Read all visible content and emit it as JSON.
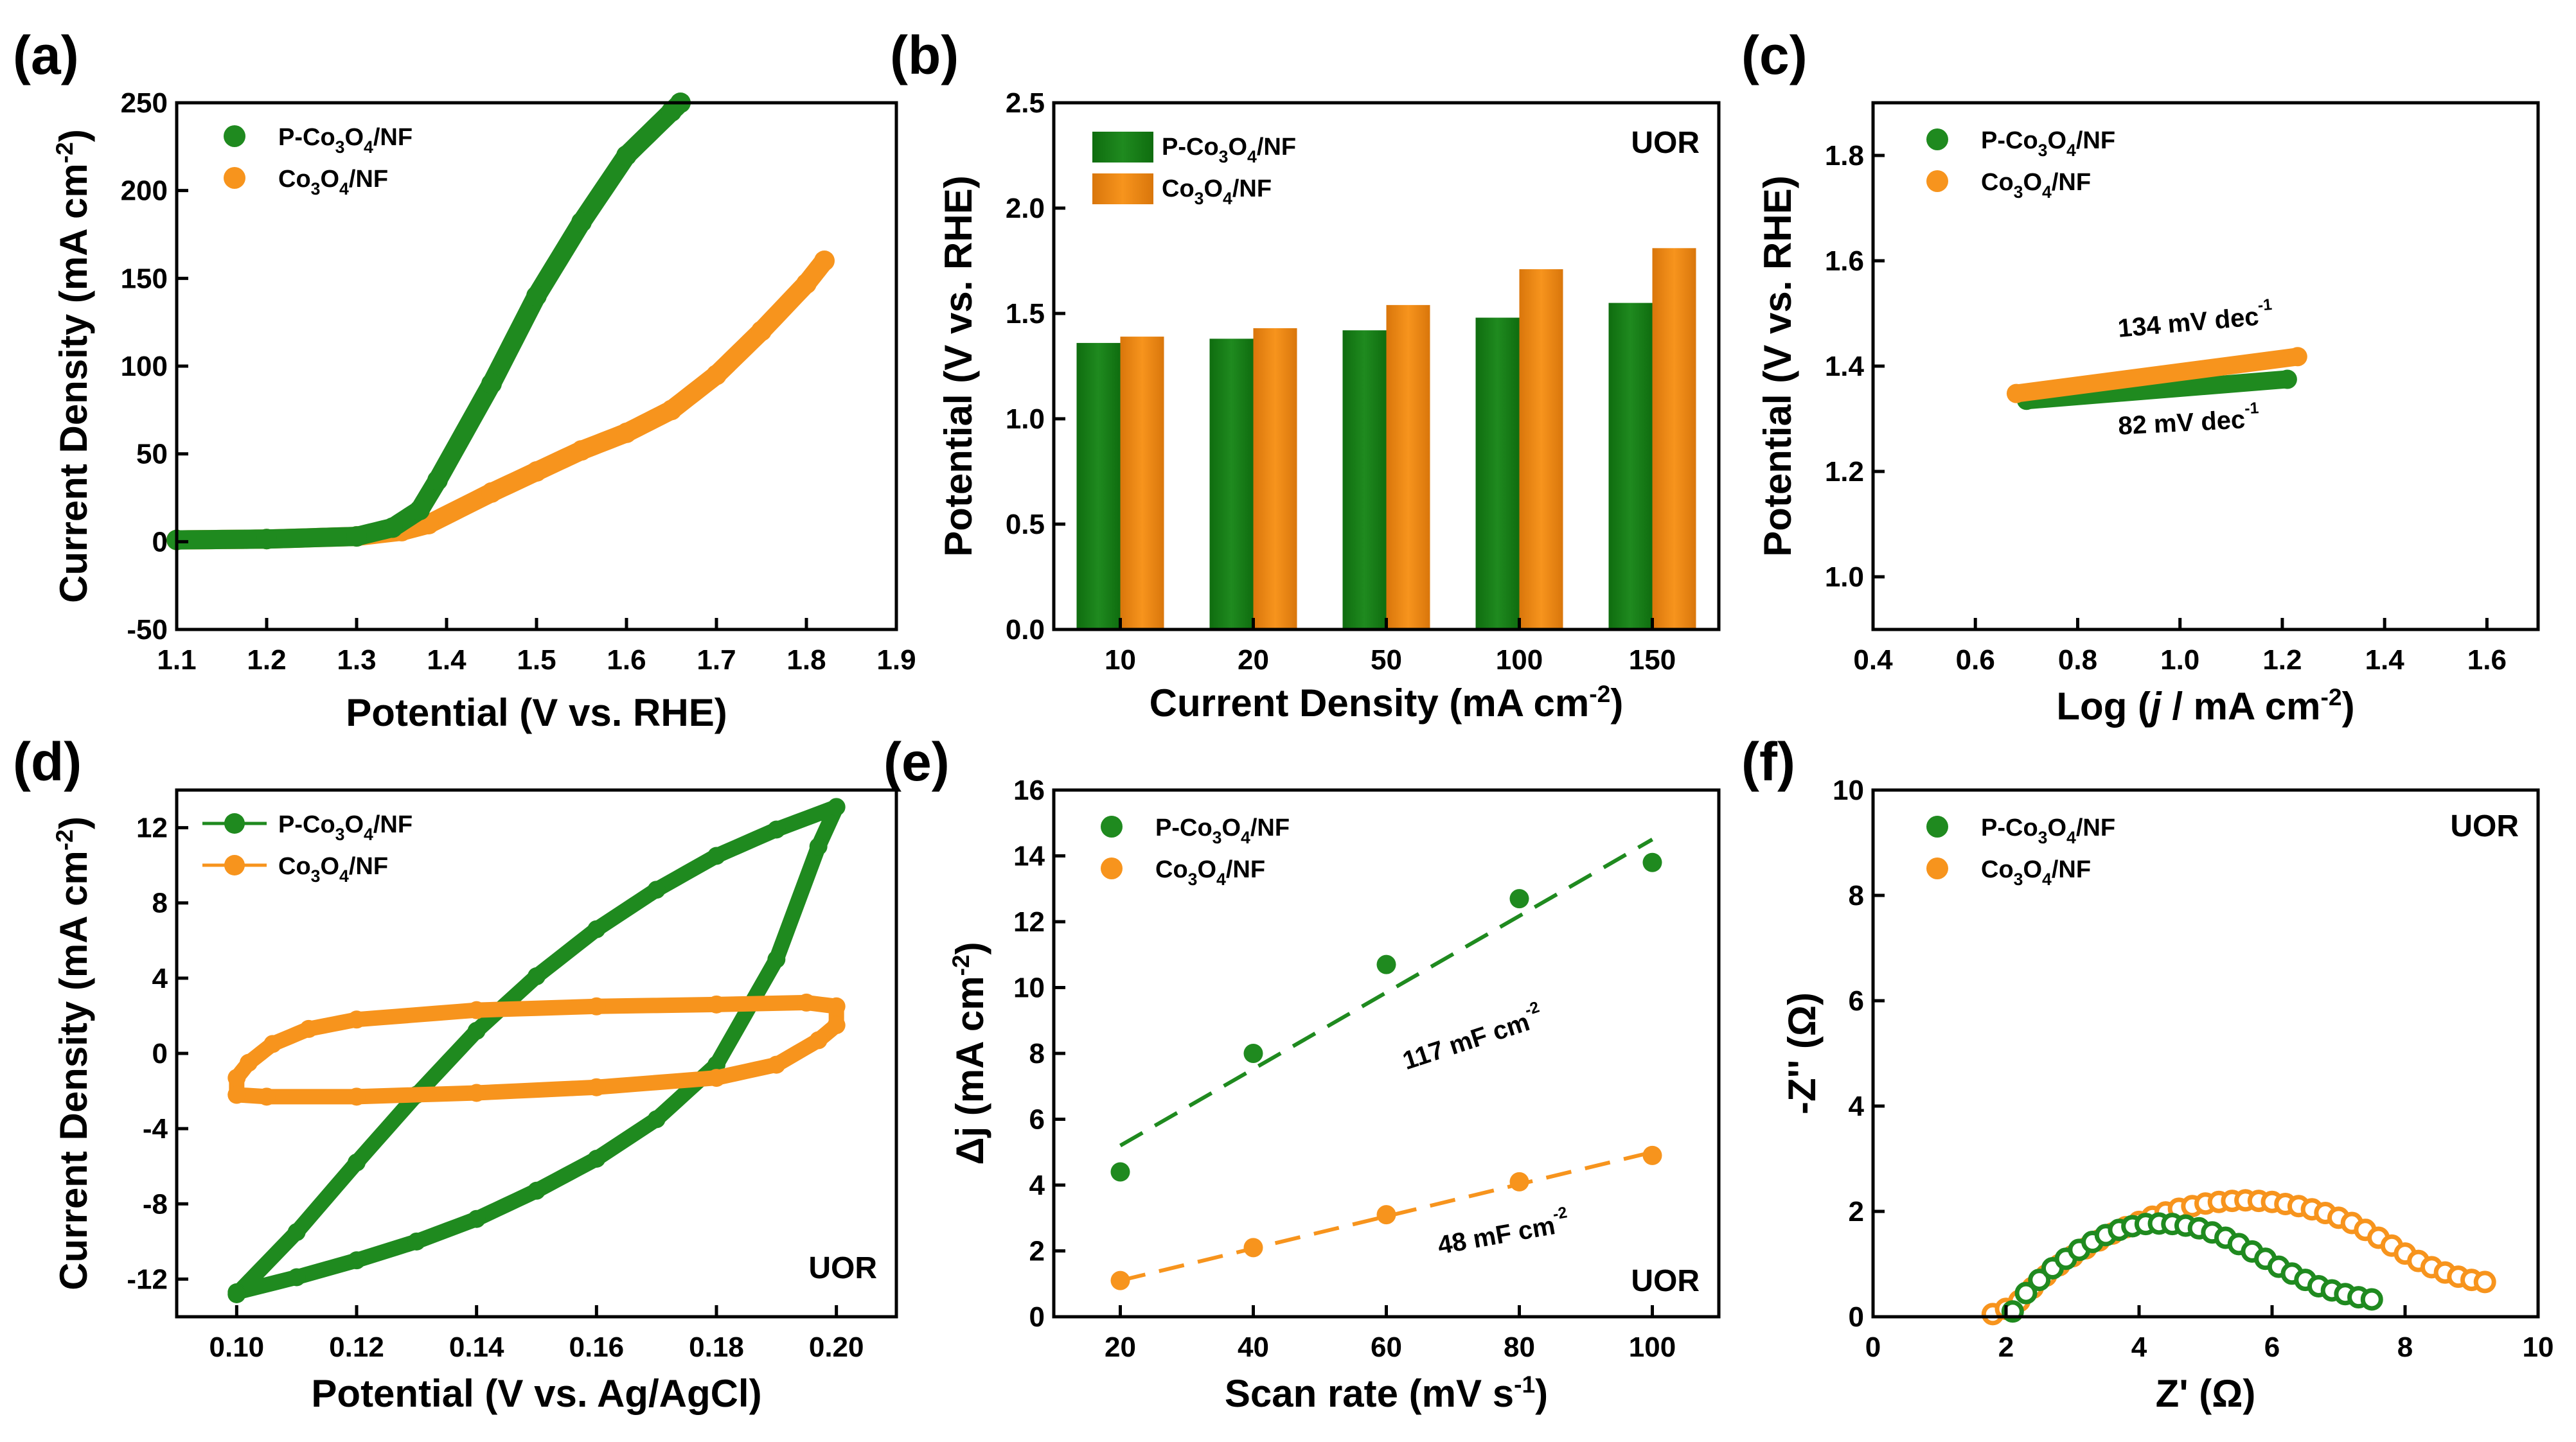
{
  "colors": {
    "green": "#1f8a1f",
    "orange": "#f7941d",
    "green_dark": "#0f6d0f",
    "orange_dark": "#d9760b"
  },
  "chart_data": [
    {
      "id": "a",
      "panel_label": "(a)",
      "type": "line",
      "xlabel": "Potential (V vs. RHE)",
      "ylabel_main": "Current Density (mA cm",
      "ylabel_sup": "-2",
      "ylabel_end": ")",
      "xlim": [
        1.1,
        1.9
      ],
      "ylim": [
        -50,
        250
      ],
      "xticks": [
        "1.1",
        "1.2",
        "1.3",
        "1.4",
        "1.5",
        "1.6",
        "1.7",
        "1.8",
        "1.9"
      ],
      "yticks": [
        "-50",
        "0",
        "50",
        "100",
        "150",
        "200",
        "250"
      ],
      "series": [
        {
          "name": "P-Co3O4/NF",
          "legend": [
            "P-Co",
            "3",
            "O",
            "4",
            "/NF"
          ],
          "color": "green",
          "x": [
            1.1,
            1.2,
            1.3,
            1.34,
            1.37,
            1.39,
            1.45,
            1.5,
            1.55,
            1.6,
            1.65,
            1.66
          ],
          "y": [
            1,
            1.5,
            3,
            8,
            18,
            35,
            90,
            140,
            182,
            220,
            245,
            250
          ]
        },
        {
          "name": "Co3O4/NF",
          "legend": [
            "Co",
            "3",
            "O",
            "4",
            "/NF"
          ],
          "color": "orange",
          "x": [
            1.1,
            1.2,
            1.3,
            1.35,
            1.38,
            1.45,
            1.5,
            1.55,
            1.6,
            1.65,
            1.7,
            1.75,
            1.8,
            1.82
          ],
          "y": [
            1,
            1.5,
            3,
            6,
            10,
            28,
            40,
            52,
            62,
            75,
            95,
            120,
            147,
            160
          ]
        }
      ]
    },
    {
      "id": "b",
      "panel_label": "(b)",
      "type": "bar",
      "xlabel_main": "Current Density (mA cm",
      "xlabel_sup": "-2",
      "xlabel_end": ")",
      "ylabel": "Potential (V vs. RHE)",
      "annotation": "UOR",
      "ylim": [
        0,
        2.5
      ],
      "categories": [
        "10",
        "20",
        "50",
        "100",
        "150"
      ],
      "yticks": [
        "0.0",
        "0.5",
        "1.0",
        "1.5",
        "2.0",
        "2.5"
      ],
      "series": [
        {
          "name": "P-Co3O4/NF",
          "legend": [
            "P-Co",
            "3",
            "O",
            "4",
            "/NF"
          ],
          "color": "green",
          "values": [
            1.36,
            1.38,
            1.42,
            1.48,
            1.55
          ]
        },
        {
          "name": "Co3O4/NF",
          "legend": [
            "Co",
            "3",
            "O",
            "4",
            "/NF"
          ],
          "color": "orange",
          "values": [
            1.39,
            1.43,
            1.54,
            1.71,
            1.81
          ]
        }
      ]
    },
    {
      "id": "c",
      "panel_label": "(c)",
      "type": "line",
      "xlabel_pre": "Log (",
      "xlabel_j": "j",
      "xlabel_main": " / mA cm",
      "xlabel_sup": "-2",
      "xlabel_end": ")",
      "ylabel": "Potential (V vs. RHE)",
      "xlim": [
        0.4,
        1.7
      ],
      "ylim": [
        0.9,
        1.9
      ],
      "xticks": [
        "0.4",
        "0.6",
        "0.8",
        "1.0",
        "1.2",
        "1.4",
        "1.6"
      ],
      "yticks": [
        "1.0",
        "1.2",
        "1.4",
        "1.6",
        "1.8"
      ],
      "annotations": [
        {
          "text": "134 mV dec",
          "sup": "-1",
          "x": 0.88,
          "y": 1.455,
          "rotate": -5
        },
        {
          "text": "82 mV dec",
          "sup": "-1",
          "x": 0.88,
          "y": 1.27,
          "rotate": -3
        }
      ],
      "series": [
        {
          "name": "P-Co3O4/NF",
          "legend": [
            "P-Co",
            "3",
            "O",
            "4",
            "/NF"
          ],
          "color": "green",
          "x": [
            0.7,
            1.21
          ],
          "y": [
            1.335,
            1.375
          ]
        },
        {
          "name": "Co3O4/NF",
          "legend": [
            "Co",
            "3",
            "O",
            "4",
            "/NF"
          ],
          "color": "orange",
          "x": [
            0.68,
            1.23
          ],
          "y": [
            1.348,
            1.418
          ]
        }
      ]
    },
    {
      "id": "d",
      "panel_label": "(d)",
      "type": "line",
      "xlabel": "Potential (V vs. Ag/AgCl)",
      "ylabel_main": "Current Density (mA cm",
      "ylabel_sup": "-2",
      "ylabel_end": ")",
      "annotation": "UOR",
      "xlim": [
        0.09,
        0.21
      ],
      "ylim": [
        -14,
        14
      ],
      "xticks": [
        "0.10",
        "0.12",
        "0.14",
        "0.16",
        "0.18",
        "0.20"
      ],
      "yticks": [
        "-12",
        "-8",
        "-4",
        "0",
        "4",
        "8",
        "12"
      ],
      "series": [
        {
          "name": "P-Co3O4/NF",
          "legend": [
            "P-Co",
            "3",
            "O",
            "4",
            "/NF"
          ],
          "color": "green",
          "x": [
            0.1,
            0.11,
            0.12,
            0.13,
            0.14,
            0.15,
            0.16,
            0.17,
            0.18,
            0.19,
            0.2,
            0.197,
            0.19,
            0.18,
            0.17,
            0.16,
            0.15,
            0.14,
            0.13,
            0.12,
            0.11,
            0.1,
            0.1
          ],
          "y": [
            -12.8,
            -9.5,
            -5.8,
            -2.2,
            1.2,
            4.1,
            6.6,
            8.7,
            10.5,
            11.9,
            13.1,
            11.0,
            5.0,
            -0.6,
            -3.5,
            -5.6,
            -7.3,
            -8.8,
            -10.0,
            -11.0,
            -11.9,
            -12.7,
            -12.8
          ]
        },
        {
          "name": "Co3O4/NF",
          "legend": [
            "Co",
            "3",
            "O",
            "4",
            "/NF"
          ],
          "color": "orange",
          "x": [
            0.1,
            0.1,
            0.102,
            0.106,
            0.112,
            0.12,
            0.14,
            0.16,
            0.18,
            0.195,
            0.2,
            0.2,
            0.197,
            0.19,
            0.18,
            0.16,
            0.14,
            0.12,
            0.105,
            0.1
          ],
          "y": [
            -2.2,
            -1.3,
            -0.5,
            0.5,
            1.3,
            1.8,
            2.3,
            2.5,
            2.6,
            2.7,
            2.5,
            1.5,
            0.7,
            -0.6,
            -1.3,
            -1.8,
            -2.1,
            -2.3,
            -2.3,
            -2.2
          ]
        }
      ]
    },
    {
      "id": "e",
      "panel_label": "(e)",
      "type": "scatter",
      "xlabel_main": "Scan rate (mV s",
      "xlabel_sup": "-1",
      "xlabel_end": ")",
      "ylabel_pre": "Δj (mA cm",
      "ylabel_sup": "-2",
      "ylabel_end": ")",
      "annotation": "UOR",
      "xlim": [
        10,
        110
      ],
      "ylim": [
        0,
        16
      ],
      "xticks": [
        "20",
        "40",
        "60",
        "80",
        "100"
      ],
      "yticks": [
        "0",
        "2",
        "4",
        "6",
        "8",
        "10",
        "12",
        "14",
        "16"
      ],
      "annotations": [
        {
          "text": "117 mF cm",
          "sup": "-2",
          "x": 63,
          "y": 7.5,
          "rotate": -18
        },
        {
          "text": "48 mF cm",
          "sup": "-2",
          "x": 68,
          "y": 1.9,
          "rotate": -10
        }
      ],
      "series": [
        {
          "name": "P-Co3O4/NF",
          "legend": [
            "P-Co",
            "3",
            "O",
            "4",
            "/NF"
          ],
          "color": "green",
          "x": [
            20,
            40,
            60,
            80,
            100
          ],
          "y": [
            4.4,
            8.0,
            10.7,
            12.7,
            13.8
          ],
          "fit": [
            [
              20,
              5.2
            ],
            [
              100,
              14.5
            ]
          ]
        },
        {
          "name": "Co3O4/NF",
          "legend": [
            "Co",
            "3",
            "O",
            "4",
            "/NF"
          ],
          "color": "orange",
          "x": [
            20,
            40,
            60,
            80,
            100
          ],
          "y": [
            1.1,
            2.1,
            3.1,
            4.1,
            4.9
          ],
          "fit": [
            [
              20,
              1.1
            ],
            [
              100,
              5.0
            ]
          ]
        }
      ]
    },
    {
      "id": "f",
      "panel_label": "(f)",
      "type": "scatter",
      "xlabel": "Z' (Ω)",
      "ylabel": "-Z'' (Ω)",
      "annotation": "UOR",
      "xlim": [
        0,
        10
      ],
      "ylim": [
        0,
        10
      ],
      "xticks": [
        "0",
        "2",
        "4",
        "6",
        "8",
        "10"
      ],
      "yticks": [
        "0",
        "2",
        "4",
        "6",
        "8",
        "10"
      ],
      "series": [
        {
          "name": "P-Co3O4/NF",
          "legend": [
            "P-Co",
            "3",
            "O",
            "4",
            "/NF"
          ],
          "color": "green",
          "x": [
            2.1,
            2.3,
            2.5,
            2.7,
            2.9,
            3.1,
            3.3,
            3.5,
            3.7,
            3.9,
            4.1,
            4.3,
            4.5,
            4.7,
            4.9,
            5.1,
            5.3,
            5.5,
            5.7,
            5.9,
            6.1,
            6.3,
            6.5,
            6.7,
            6.9,
            7.1,
            7.3,
            7.5
          ],
          "y": [
            0.1,
            0.45,
            0.7,
            0.92,
            1.1,
            1.27,
            1.42,
            1.55,
            1.65,
            1.72,
            1.76,
            1.77,
            1.76,
            1.73,
            1.68,
            1.6,
            1.5,
            1.38,
            1.24,
            1.1,
            0.95,
            0.82,
            0.7,
            0.58,
            0.5,
            0.43,
            0.37,
            0.33
          ]
        },
        {
          "name": "Co3O4/NF",
          "legend": [
            "Co",
            "3",
            "O",
            "4",
            "/NF"
          ],
          "color": "orange",
          "x": [
            1.8,
            2.0,
            2.2,
            2.4,
            2.6,
            2.8,
            3.0,
            3.2,
            3.4,
            3.6,
            3.8,
            4.0,
            4.2,
            4.4,
            4.6,
            4.8,
            5.0,
            5.2,
            5.4,
            5.6,
            5.8,
            6.0,
            6.2,
            6.4,
            6.6,
            6.8,
            7.0,
            7.2,
            7.4,
            7.6,
            7.8,
            8.0,
            8.2,
            8.4,
            8.6,
            8.8,
            9.0,
            9.2
          ],
          "y": [
            0.05,
            0.15,
            0.3,
            0.55,
            0.78,
            0.98,
            1.15,
            1.3,
            1.45,
            1.58,
            1.7,
            1.8,
            1.9,
            1.98,
            2.05,
            2.1,
            2.15,
            2.18,
            2.2,
            2.21,
            2.2,
            2.18,
            2.14,
            2.1,
            2.04,
            1.97,
            1.88,
            1.78,
            1.65,
            1.5,
            1.35,
            1.2,
            1.06,
            0.94,
            0.84,
            0.76,
            0.7,
            0.66
          ]
        }
      ]
    }
  ]
}
